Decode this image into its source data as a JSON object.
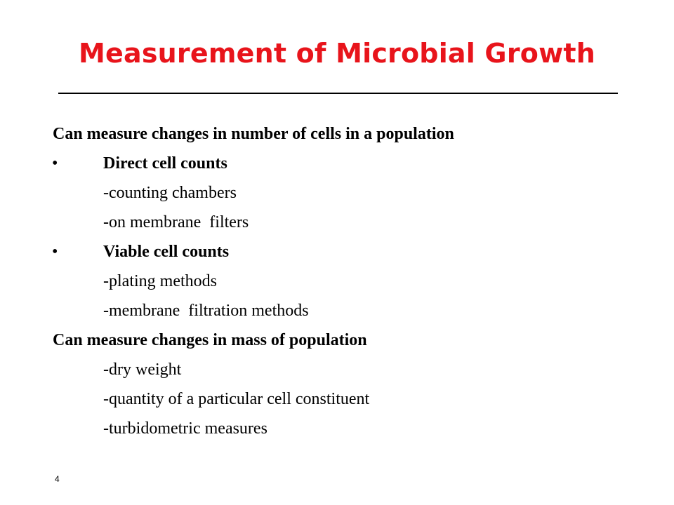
{
  "slide": {
    "title": "Measurement of Microbial Growth",
    "title_color": "#e8141b",
    "bullet_char": "•",
    "lines": [
      {
        "kind": "head",
        "text": "Can measure changes in number of cells in a population"
      },
      {
        "kind": "bullet",
        "text": "Direct cell counts"
      },
      {
        "kind": "sub",
        "text": "-counting chambers"
      },
      {
        "kind": "sub",
        "text": "-on membrane  filters"
      },
      {
        "kind": "bullet",
        "text": "Viable cell counts"
      },
      {
        "kind": "sub",
        "text": "-plating methods"
      },
      {
        "kind": "sub",
        "text": "-membrane  filtration methods"
      },
      {
        "kind": "head",
        "text": "Can measure changes in mass of population"
      },
      {
        "kind": "sub",
        "text": "-dry weight"
      },
      {
        "kind": "sub",
        "text": "-quantity of a particular cell constituent"
      },
      {
        "kind": "sub",
        "text": "-turbidometric measures"
      }
    ],
    "page_number": "4"
  }
}
